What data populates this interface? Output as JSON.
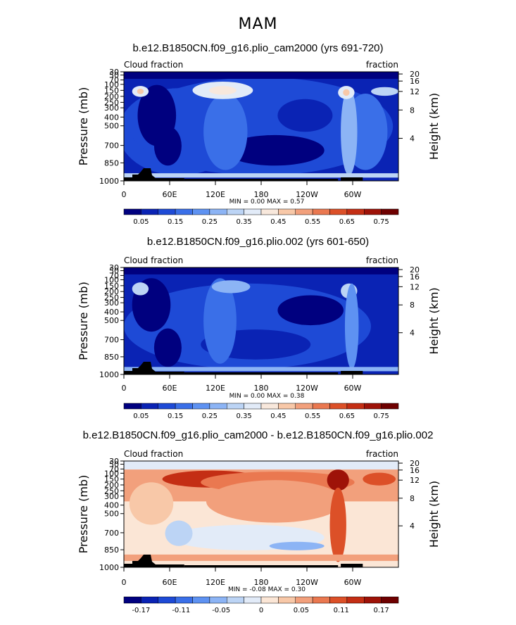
{
  "figure": {
    "title": "MAM"
  },
  "chart_data": [
    {
      "type": "contour",
      "title": "b.e12.B1850CN.f09_g16.plio_cam2000 (yrs 691-720)",
      "variable_left_label": "Cloud fraction",
      "variable_right_label": "fraction",
      "ylabel": "Pressure (mb)",
      "ylabel_right": "Height (km)",
      "x_ticks": [
        "0",
        "60E",
        "120E",
        "180",
        "120W",
        "60W"
      ],
      "y_ticks": [
        "30",
        "50",
        "70",
        "100",
        "150",
        "200",
        "250",
        "300",
        "400",
        "500",
        "700",
        "850",
        "1000"
      ],
      "y_ticks_right": [
        "20",
        "16",
        "12",
        "8",
        "4"
      ],
      "stats": {
        "min_label": "MIN =",
        "min": "0.00",
        "max_label": "MAX =",
        "max": "0.57"
      },
      "colorbar_labels": [
        "0.05",
        "0.15",
        "0.25",
        "0.35",
        "0.45",
        "0.55",
        "0.65",
        "0.75"
      ],
      "colorbar_colors": [
        "#00007f",
        "#0a23b4",
        "#1e4ad6",
        "#3a6fe8",
        "#5e92f2",
        "#8cb4f5",
        "#bcd4f5",
        "#e2ebf8",
        "#f8e8dc",
        "#f8c8a8",
        "#f2a07c",
        "#ea7850",
        "#dc5028",
        "#c42e14",
        "#9e1208",
        "#6e0000"
      ]
    },
    {
      "type": "contour",
      "title": "b.e12.B1850CN.f09_g16.plio.002 (yrs 601-650)",
      "variable_left_label": "Cloud fraction",
      "variable_right_label": "fraction",
      "ylabel": "Pressure (mb)",
      "ylabel_right": "Height (km)",
      "x_ticks": [
        "0",
        "60E",
        "120E",
        "180",
        "120W",
        "60W"
      ],
      "y_ticks": [
        "30",
        "50",
        "70",
        "100",
        "150",
        "200",
        "250",
        "300",
        "400",
        "500",
        "700",
        "850",
        "1000"
      ],
      "y_ticks_right": [
        "20",
        "16",
        "12",
        "8",
        "4"
      ],
      "stats": {
        "min_label": "MIN =",
        "min": "0.00",
        "max_label": "MAX =",
        "max": "0.38"
      },
      "colorbar_labels": [
        "0.05",
        "0.15",
        "0.25",
        "0.35",
        "0.45",
        "0.55",
        "0.65",
        "0.75"
      ],
      "colorbar_colors": [
        "#00007f",
        "#0a23b4",
        "#1e4ad6",
        "#3a6fe8",
        "#5e92f2",
        "#8cb4f5",
        "#bcd4f5",
        "#e2ebf8",
        "#f8e8dc",
        "#f8c8a8",
        "#f2a07c",
        "#ea7850",
        "#dc5028",
        "#c42e14",
        "#9e1208",
        "#6e0000"
      ]
    },
    {
      "type": "contour",
      "title": "b.e12.B1850CN.f09_g16.plio_cam2000 - b.e12.B1850CN.f09_g16.plio.002",
      "variable_left_label": "Cloud fraction",
      "variable_right_label": "fraction",
      "ylabel": "Pressure (mb)",
      "ylabel_right": "Height (km)",
      "x_ticks": [
        "0",
        "60E",
        "120E",
        "180",
        "120W",
        "60W"
      ],
      "y_ticks": [
        "30",
        "50",
        "70",
        "100",
        "150",
        "200",
        "250",
        "300",
        "400",
        "500",
        "700",
        "850",
        "1000"
      ],
      "y_ticks_right": [
        "20",
        "16",
        "12",
        "8",
        "4"
      ],
      "stats": {
        "min_label": "MIN =",
        "min": "-0.08",
        "max_label": "MAX =",
        "max": "0.30"
      },
      "colorbar_labels": [
        "-0.17",
        "-0.11",
        "-0.05",
        "0",
        "0.05",
        "0.11",
        "0.17"
      ],
      "colorbar_colors": [
        "#00007f",
        "#0a23b4",
        "#1e4ad6",
        "#3a6fe8",
        "#5e92f2",
        "#8cb4f5",
        "#bcd4f5",
        "#e2ebf8",
        "#fbe6d6",
        "#f8c8a8",
        "#f2a07c",
        "#ea7850",
        "#dc5028",
        "#c42e14",
        "#9e1208",
        "#6e0000"
      ]
    }
  ]
}
